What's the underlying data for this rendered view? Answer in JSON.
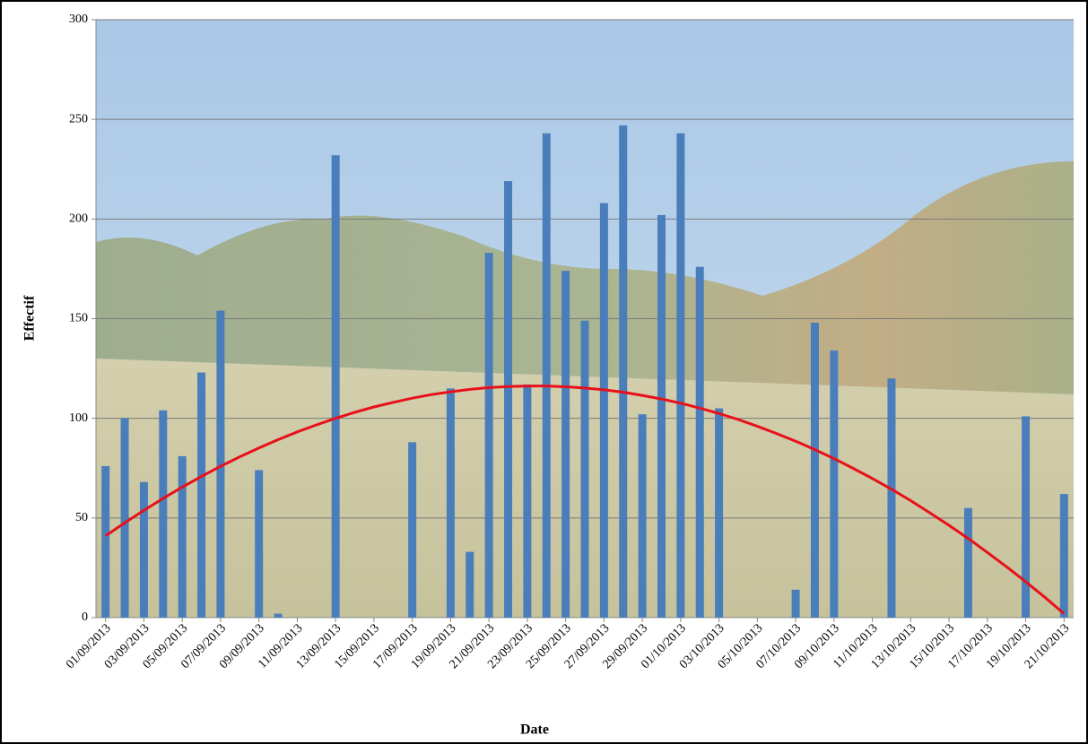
{
  "chart_data": {
    "type": "bar",
    "xlabel": "Date",
    "ylabel": "Effectif",
    "categories": [
      "01/09/2013",
      null,
      "03/09/2013",
      null,
      "05/09/2013",
      null,
      "07/09/2013",
      null,
      "09/09/2013",
      null,
      "11/09/2013",
      null,
      "13/09/2013",
      null,
      "15/09/2013",
      null,
      "17/09/2013",
      null,
      "19/09/2013",
      null,
      "21/09/2013",
      null,
      "23/09/2013",
      null,
      "25/09/2013",
      null,
      "27/09/2013",
      null,
      "29/09/2013",
      null,
      "01/10/2013",
      null,
      "03/10/2013",
      null,
      "05/10/2013",
      null,
      "07/10/2013",
      null,
      "09/10/2013",
      null,
      "11/10/2013",
      null,
      "13/10/2013",
      null,
      "15/10/2013",
      null,
      "17/10/2013",
      null,
      "19/10/2013",
      null,
      "21/10/2013"
    ],
    "values": [
      76,
      100,
      68,
      104,
      81,
      123,
      154,
      null,
      74,
      2,
      null,
      null,
      232,
      null,
      null,
      null,
      88,
      null,
      115,
      33,
      183,
      219,
      117,
      243,
      174,
      149,
      208,
      247,
      102,
      202,
      243,
      176,
      105,
      null,
      null,
      null,
      14,
      148,
      134,
      null,
      null,
      120,
      null,
      null,
      null,
      55,
      null,
      null,
      101,
      null,
      62
    ],
    "color": "#4a7ebb",
    "trend_values": [
      41,
      47.6,
      53.8,
      59.8,
      65.5,
      70.8,
      75.9,
      80.7,
      85.1,
      89.3,
      93.2,
      96.7,
      100,
      103,
      105.7,
      108,
      110.1,
      111.9,
      113.3,
      114.5,
      115.4,
      115.9,
      116.2,
      116.2,
      115.8,
      115.2,
      114.3,
      113.1,
      111.5,
      109.7,
      107.6,
      105.1,
      102.4,
      99.4,
      96,
      92.4,
      88.5,
      84.3,
      79.8,
      74.9,
      69.8,
      64.4,
      58.7,
      52.6,
      46.3,
      39.7,
      32.7,
      25.5,
      18,
      10.2,
      2
    ],
    "trend_color": "#e8101a",
    "ylim": [
      0,
      300
    ],
    "yticks": [
      0,
      50,
      100,
      150,
      200,
      250,
      300
    ],
    "grid": true
  }
}
